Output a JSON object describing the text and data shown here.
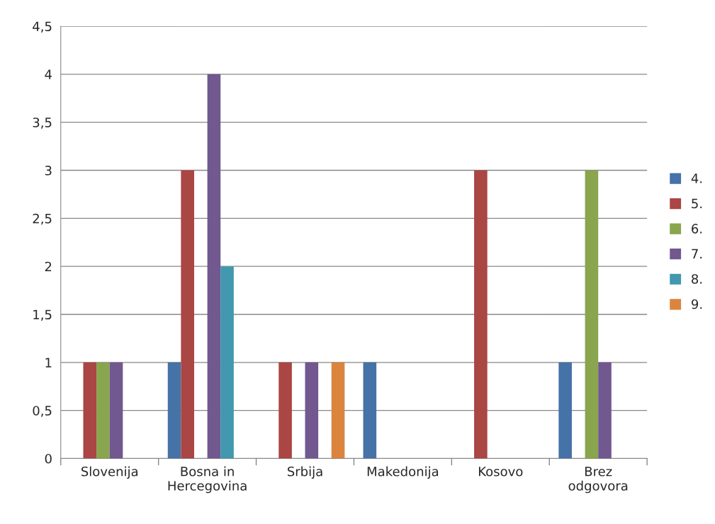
{
  "chart_data": {
    "type": "bar",
    "categories": [
      "Slovenija",
      "Bosna in\nHercegovina",
      "Srbija",
      "Makedonija",
      "Kosovo",
      "Brez\nodgovora"
    ],
    "series": [
      {
        "name": "4.",
        "color": "#4572a7",
        "values": [
          null,
          1,
          null,
          1,
          null,
          1
        ]
      },
      {
        "name": "5.",
        "color": "#aa4643",
        "values": [
          1,
          3,
          1,
          null,
          3,
          null
        ]
      },
      {
        "name": "6.",
        "color": "#89a54e",
        "values": [
          1,
          null,
          null,
          null,
          null,
          3
        ]
      },
      {
        "name": "7.",
        "color": "#71588f",
        "values": [
          1,
          4,
          1,
          null,
          null,
          1
        ]
      },
      {
        "name": "8.",
        "color": "#4198af",
        "values": [
          null,
          2,
          null,
          null,
          null,
          null
        ]
      },
      {
        "name": "9.",
        "color": "#db843d",
        "values": [
          null,
          null,
          1,
          null,
          null,
          null
        ]
      }
    ],
    "ylim": [
      0,
      4.5
    ],
    "yticks": [
      0,
      {
        "value": 0.5,
        "label": "0,5"
      },
      1,
      {
        "value": 1.5,
        "label": "1,5"
      },
      2,
      {
        "value": 2.5,
        "label": "2,5"
      },
      3,
      {
        "value": 3.5,
        "label": "3,5"
      },
      4,
      {
        "value": 4.5,
        "label": "4,5"
      }
    ],
    "grid": "y",
    "legend": "right"
  }
}
